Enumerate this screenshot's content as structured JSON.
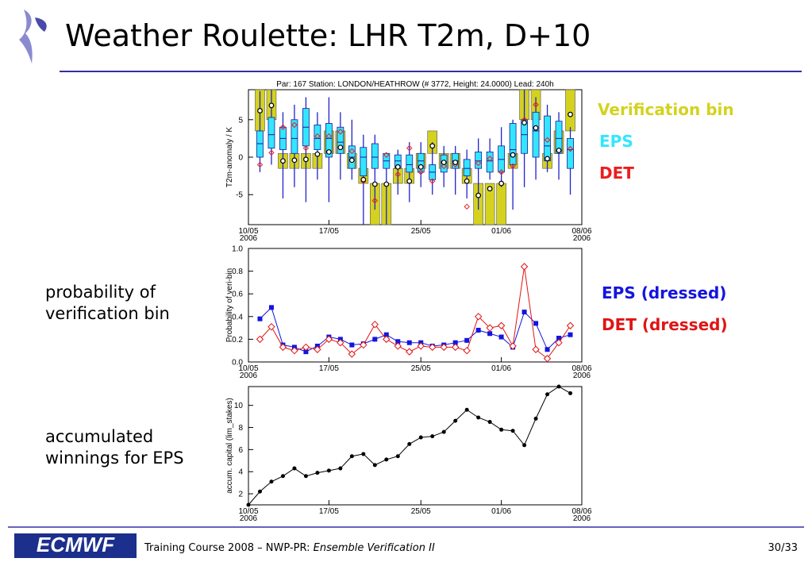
{
  "title": "Weather Roulette: LHR T2m, D+10",
  "labels": {
    "probability": "probability of verification bin",
    "winnings": "accumulated winnings for EPS"
  },
  "footer": {
    "logo": "ECMWF",
    "course": "Training Course 2008 – NWP-PR: ",
    "course_italic": "Ensemble Verification II",
    "page": "30/33"
  },
  "chart_data": [
    {
      "type": "boxplot",
      "title": "Par: 167 Station:  LONDON/HEATHROW  (# 3772, Height: 24.0000) Lead: 240h",
      "y_label": "T2m-anomaly / K",
      "x": [
        1,
        2,
        3,
        4,
        5,
        6,
        7,
        8,
        9,
        10,
        11,
        12,
        13,
        14,
        15,
        16,
        17,
        18,
        19,
        20,
        21,
        22,
        23,
        24,
        25,
        26,
        27,
        28
      ],
      "xlim": [
        0,
        29
      ],
      "xticks": [
        {
          "value": 0,
          "label": "10/05"
        },
        {
          "value": 7,
          "label": "17/05"
        },
        {
          "value": 15,
          "label": "25/05"
        },
        {
          "value": 22,
          "label": "01/06"
        },
        {
          "value": 29,
          "label": "08/06"
        }
      ],
      "year_labels": [
        {
          "value": 0,
          "label": "2006"
        },
        {
          "value": 29,
          "label": "2006"
        }
      ],
      "ylim": [
        -9,
        9
      ],
      "yticks": [
        -5,
        0,
        5
      ],
      "series": [
        {
          "name": "Verification bin",
          "color": "#d4d21e",
          "low": [
            3.5,
            5,
            -1.5,
            -1.5,
            -1.5,
            -1.5,
            0.5,
            0.5,
            -1.5,
            -3.5,
            -9,
            -9,
            -3.5,
            -3.5,
            -1.5,
            0.5,
            -1.5,
            -1.5,
            -3.5,
            -9,
            -9,
            -9,
            -1.5,
            5,
            5,
            -1.5,
            0.5,
            3.5
          ],
          "high": [
            9,
            9,
            0.5,
            0.5,
            0.5,
            0.5,
            3.5,
            3.5,
            0.5,
            -1.5,
            -3.5,
            -3.5,
            -1.5,
            -1.5,
            0.5,
            3.5,
            0.5,
            0.5,
            -1.5,
            -3.5,
            -3.5,
            -3.5,
            0.5,
            9,
            9,
            0.5,
            3.5,
            9
          ]
        },
        {
          "name": "EPS",
          "color": "#33e6ff",
          "min": [
            -2,
            -1,
            -5.5,
            -4,
            -6,
            -3,
            -6,
            -3,
            -3,
            -9,
            -7,
            -9,
            -5,
            -6,
            -4,
            -5,
            -4,
            -5,
            -5.5,
            -7,
            -3,
            -4,
            -7,
            -4,
            -3,
            -2,
            -3,
            -5
          ],
          "q1": [
            0,
            1.2,
            1,
            0.5,
            1.5,
            1,
            0,
            0.5,
            -1.5,
            -2.5,
            -1.5,
            -1.5,
            -1.5,
            -2,
            -2,
            -3,
            -2,
            -1.5,
            -2.5,
            -1.5,
            -2,
            -2,
            -1,
            0.5,
            0,
            -0.5,
            0.5,
            -1.5
          ],
          "median": [
            1.8,
            3,
            2.5,
            2.5,
            4,
            2.5,
            2.5,
            2,
            0,
            0,
            0,
            -0.5,
            -0.5,
            -1,
            -0.5,
            -2,
            -0.7,
            -0.5,
            -1.5,
            -0.5,
            -0.5,
            -0.3,
            1,
            3,
            3.5,
            1.5,
            2.5,
            1
          ],
          "q3": [
            3.5,
            5.3,
            4,
            5,
            6.5,
            4.3,
            4.5,
            4,
            1.5,
            1.3,
            1.8,
            0.5,
            0.3,
            0.3,
            0.5,
            -1,
            0.3,
            0.5,
            -0.3,
            0.7,
            0.7,
            1.5,
            4.5,
            5,
            6,
            5.5,
            4.8,
            2.5
          ],
          "max": [
            8.8,
            9,
            6,
            7,
            8,
            6,
            8,
            6,
            5,
            3,
            3,
            0.5,
            1,
            2,
            2,
            2,
            1.5,
            1.5,
            1,
            2.5,
            2.5,
            4,
            5,
            9,
            8,
            7,
            6,
            4
          ]
        },
        {
          "name": "DET",
          "color": "#ee1c1c",
          "values": [
            -1,
            0.6,
            4,
            4.3,
            1.2,
            2.8,
            2.8,
            3.4,
            0.8,
            -3.2,
            -5.8,
            0.3,
            -2.3,
            1.2,
            -2,
            -3.2,
            -1.2,
            -1,
            -6.6,
            -0.8,
            -0.2,
            -2,
            -1.2,
            5,
            7,
            2.3,
            0.9,
            1.1
          ]
        }
      ],
      "observations": [
        6.2,
        6.9,
        -0.5,
        -0.4,
        -0.3,
        0.4,
        0.7,
        1.3,
        -0.4,
        -3,
        -3.6,
        -3.6,
        -1.3,
        -3.2,
        -1.3,
        1.5,
        -0.7,
        -0.7,
        -3.2,
        -5.1,
        -4.2,
        -3.5,
        0.3,
        4.6,
        3.9,
        -0.2,
        0.9,
        5.7
      ]
    },
    {
      "type": "line",
      "y_label": "Probability of veri-bin",
      "x": [
        1,
        2,
        3,
        4,
        5,
        6,
        7,
        8,
        9,
        10,
        11,
        12,
        13,
        14,
        15,
        16,
        17,
        18,
        19,
        20,
        21,
        22,
        23,
        24,
        25,
        26,
        27,
        28
      ],
      "xlim": [
        0,
        29
      ],
      "xticks": [
        {
          "value": 0,
          "label": "10/05"
        },
        {
          "value": 7,
          "label": "17/05"
        },
        {
          "value": 15,
          "label": "25/05"
        },
        {
          "value": 22,
          "label": "01/06"
        },
        {
          "value": 29,
          "label": "08/06"
        }
      ],
      "year_labels": [
        {
          "value": 0,
          "label": "2006"
        },
        {
          "value": 29,
          "label": "2006"
        }
      ],
      "ylim": [
        0,
        1
      ],
      "yticks": [
        {
          "value": 0,
          "label": "0.0"
        },
        {
          "value": 0.2,
          "label": "0.2"
        },
        {
          "value": 0.4,
          "label": "0.4"
        },
        {
          "value": 0.6,
          "label": "0.6"
        },
        {
          "value": 0.8,
          "label": "0.8"
        },
        {
          "value": 1,
          "label": "1.0"
        }
      ],
      "series": [
        {
          "name": "EPS (dressed)",
          "color": "#1414e0",
          "marker": "square",
          "values": [
            0.38,
            0.48,
            0.15,
            0.13,
            0.09,
            0.14,
            0.22,
            0.2,
            0.15,
            0.16,
            0.2,
            0.24,
            0.18,
            0.17,
            0.17,
            0.14,
            0.15,
            0.17,
            0.19,
            0.28,
            0.25,
            0.22,
            0.13,
            0.44,
            0.34,
            0.11,
            0.21,
            0.24
          ]
        },
        {
          "name": "DET (dressed)",
          "color": "#e01414",
          "marker": "diamond",
          "values": [
            0.2,
            0.31,
            0.13,
            0.1,
            0.13,
            0.11,
            0.2,
            0.17,
            0.07,
            0.15,
            0.33,
            0.2,
            0.14,
            0.09,
            0.14,
            0.13,
            0.13,
            0.13,
            0.1,
            0.4,
            0.3,
            0.32,
            0.14,
            0.84,
            0.11,
            0.03,
            0.17,
            0.32
          ]
        }
      ]
    },
    {
      "type": "line",
      "y_label": "accum. capital (lim_stakes)",
      "x": [
        0,
        1,
        2,
        3,
        4,
        5,
        6,
        7,
        8,
        9,
        10,
        11,
        12,
        13,
        14,
        15,
        16,
        17,
        18,
        19,
        20,
        21,
        22,
        23,
        24,
        25,
        26,
        27,
        28
      ],
      "xlim": [
        0,
        29
      ],
      "xticks": [
        {
          "value": 0,
          "label": "10/05"
        },
        {
          "value": 7,
          "label": "17/05"
        },
        {
          "value": 15,
          "label": "25/05"
        },
        {
          "value": 22,
          "label": "01/06"
        },
        {
          "value": 29,
          "label": "08/06"
        }
      ],
      "year_labels": [
        {
          "value": 0,
          "label": "2006"
        },
        {
          "value": 29,
          "label": "2006"
        }
      ],
      "ylim": [
        1,
        11.7
      ],
      "yticks": [
        2,
        4,
        6,
        8,
        10
      ],
      "series": [
        {
          "color": "#000000",
          "marker": "circle",
          "values": [
            1,
            2.2,
            3.1,
            3.6,
            4.3,
            3.6,
            3.9,
            4.1,
            4.3,
            5.4,
            5.6,
            4.6,
            5.1,
            5.4,
            6.5,
            7.1,
            7.2,
            7.6,
            8.6,
            9.6,
            8.9,
            8.5,
            7.8,
            7.7,
            6.4,
            8.8,
            11,
            11.7,
            11.1
          ]
        }
      ]
    }
  ]
}
